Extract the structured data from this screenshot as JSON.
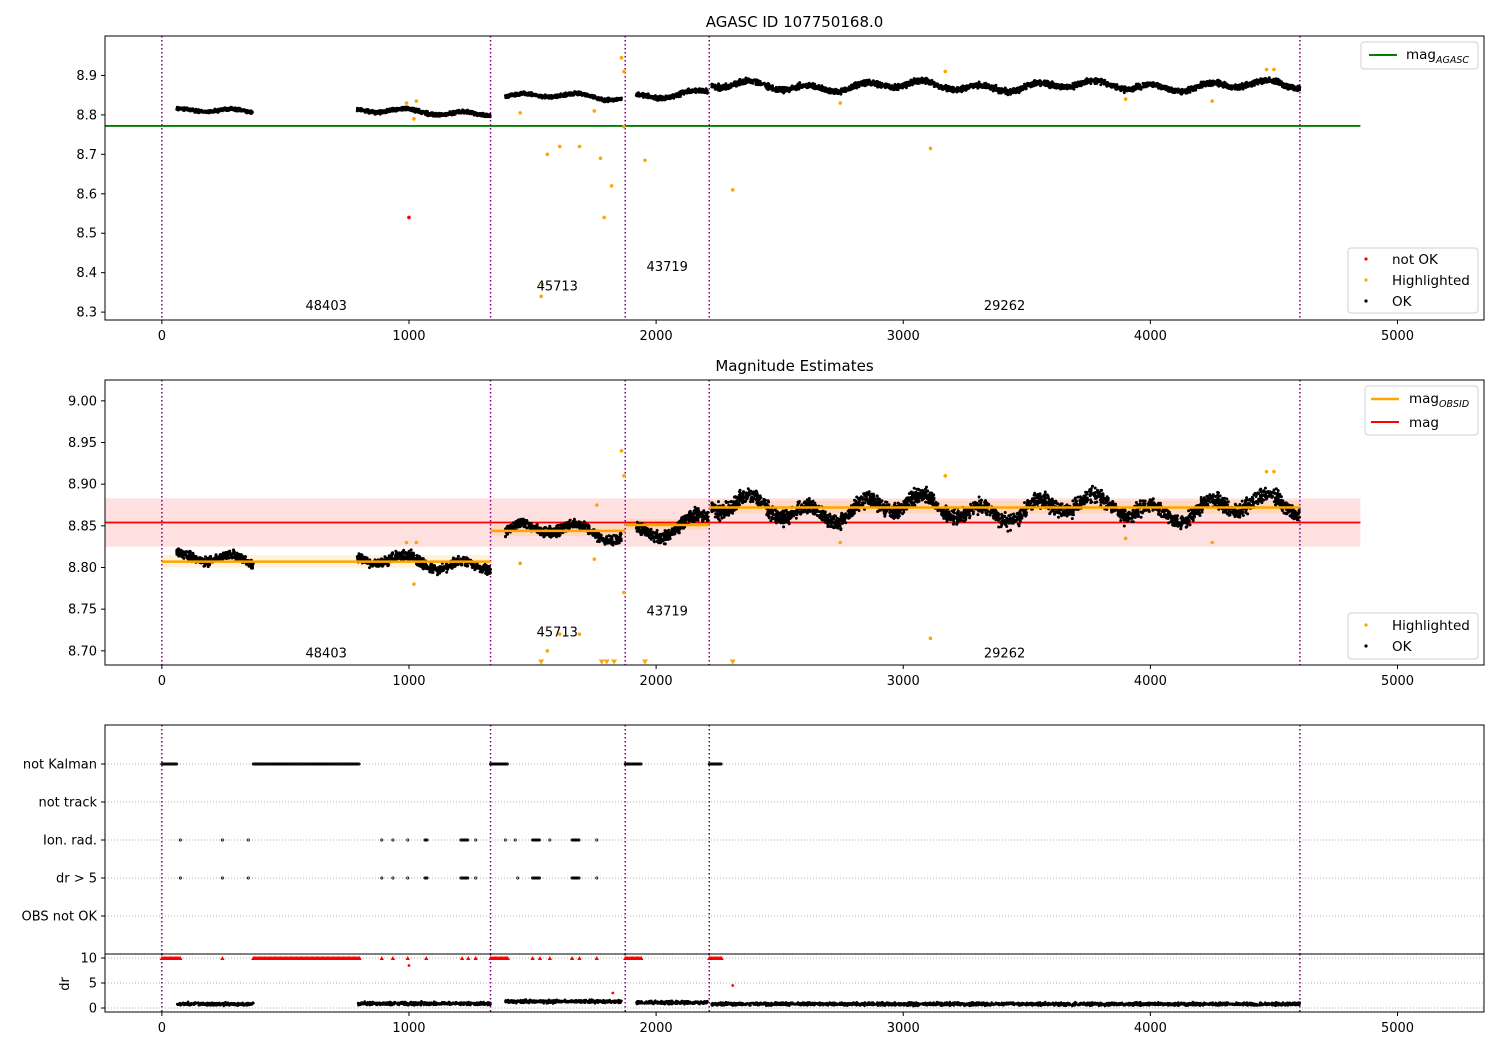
{
  "chart_data": [
    {
      "type": "scatter",
      "title": "AGASC ID 107750168.0",
      "xlim": [
        -230,
        5350
      ],
      "ylim": [
        8.28,
        9.0
      ],
      "xticks": [
        0,
        1000,
        2000,
        3000,
        4000,
        5000
      ],
      "yticks": [
        8.3,
        8.4,
        8.5,
        8.6,
        8.7,
        8.8,
        8.9
      ],
      "obsid_boundaries": [
        0,
        1330,
        1875,
        2215,
        4605
      ],
      "obsid_labels": [
        {
          "text": "48403",
          "x": 665,
          "y": 8.315
        },
        {
          "text": "45713",
          "x": 1600,
          "y": 8.365
        },
        {
          "text": "43719",
          "x": 2045,
          "y": 8.415
        },
        {
          "text": "29262",
          "x": 3410,
          "y": 8.315
        }
      ],
      "reference_lines": [
        {
          "name": "mag",
          "subscript": "AGASC",
          "y": 8.772,
          "x": [
            -230,
            4850
          ],
          "color": "#008000"
        }
      ],
      "series": [
        {
          "name": "not OK",
          "color": "#ff0000",
          "marker": "dot",
          "points": [
            [
              1000,
              8.54
            ]
          ]
        },
        {
          "name": "Highlighted",
          "color": "#ffa500",
          "marker": "dot",
          "points": [
            [
              990,
              8.83
            ],
            [
              1020,
              8.79
            ],
            [
              1030,
              8.835
            ],
            [
              1450,
              8.805
            ],
            [
              1560,
              8.7
            ],
            [
              1610,
              8.72
            ],
            [
              1690,
              8.72
            ],
            [
              1750,
              8.81
            ],
            [
              1775,
              8.69
            ],
            [
              1790,
              8.54
            ],
            [
              1820,
              8.62
            ],
            [
              1860,
              8.945
            ],
            [
              1870,
              8.91
            ],
            [
              1870,
              8.77
            ],
            [
              1955,
              8.685
            ],
            [
              2310,
              8.61
            ],
            [
              2745,
              8.83
            ],
            [
              3110,
              8.715
            ],
            [
              3170,
              8.91
            ],
            [
              3900,
              8.84
            ],
            [
              4250,
              8.835
            ],
            [
              4470,
              8.915
            ],
            [
              4500,
              8.915
            ],
            [
              1535,
              8.34
            ],
            [
              1540,
              8.37
            ]
          ]
        },
        {
          "name": "OK",
          "color": "#000000",
          "marker": "dot",
          "segments": [
            {
              "x": [
                60,
                370
              ],
              "base": [
                8.81,
                8.808
              ],
              "amp": 0.01
            },
            {
              "x": [
                790,
                1330
              ],
              "base": [
                8.808,
                8.806
              ],
              "amp": 0.012
            },
            {
              "x": [
                1390,
                1860
              ],
              "base": [
                8.848,
                8.844
              ],
              "amp": 0.012
            },
            {
              "x": [
                1920,
                2210
              ],
              "base": [
                8.85,
                8.856
              ],
              "amp": 0.014
            },
            {
              "x": [
                2225,
                4605
              ],
              "base": [
                8.872,
                8.874
              ],
              "amp": 0.018
            }
          ]
        }
      ],
      "legends": [
        {
          "entries": [
            "mag_AGASC"
          ],
          "placement": "top-right"
        },
        {
          "entries": [
            "not OK",
            "Highlighted",
            "OK"
          ],
          "placement": "bottom-right"
        }
      ]
    },
    {
      "type": "scatter",
      "title": "Magnitude Estimates",
      "xlim": [
        -230,
        5350
      ],
      "ylim": [
        8.683,
        9.025
      ],
      "xticks": [
        0,
        1000,
        2000,
        3000,
        4000,
        5000
      ],
      "yticks": [
        8.7,
        8.75,
        8.8,
        8.85,
        8.9,
        8.95,
        9.0
      ],
      "obsid_boundaries": [
        0,
        1330,
        1875,
        2215,
        4605
      ],
      "obsid_labels": [
        {
          "text": "48403",
          "x": 665,
          "y": 8.697
        },
        {
          "text": "45713",
          "x": 1600,
          "y": 8.722
        },
        {
          "text": "43719",
          "x": 2045,
          "y": 8.747
        },
        {
          "text": "29262",
          "x": 3410,
          "y": 8.697
        }
      ],
      "mag_line": {
        "name": "mag",
        "y": 8.854,
        "band": [
          8.825,
          8.883
        ],
        "x": [
          -230,
          4850
        ],
        "color": "#ff0000"
      },
      "obsid_mag": {
        "name": "mag",
        "subscript": "OBSID",
        "color": "#ffa500",
        "segments": [
          {
            "x": [
              0,
              1330
            ],
            "y": 8.807,
            "band": [
              8.8,
              8.815
            ]
          },
          {
            "x": [
              1330,
              1875
            ],
            "y": 8.844,
            "band": [
              8.838,
              8.851
            ]
          },
          {
            "x": [
              1875,
              2215
            ],
            "y": 8.851,
            "band": [
              8.845,
              8.858
            ]
          },
          {
            "x": [
              2215,
              4605
            ],
            "y": 8.872,
            "band": [
              8.865,
              8.88
            ]
          }
        ]
      },
      "series": [
        {
          "name": "Highlighted",
          "color": "#ffa500",
          "marker": "dot",
          "points": [
            [
              990,
              8.83
            ],
            [
              1020,
              8.78
            ],
            [
              1030,
              8.83
            ],
            [
              1450,
              8.805
            ],
            [
              1560,
              8.7
            ],
            [
              1610,
              8.72
            ],
            [
              1690,
              8.72
            ],
            [
              1750,
              8.81
            ],
            [
              1760,
              8.875
            ],
            [
              1860,
              8.94
            ],
            [
              1870,
              8.91
            ],
            [
              1870,
              8.77
            ],
            [
              2745,
              8.83
            ],
            [
              3110,
              8.715
            ],
            [
              3170,
              8.91
            ],
            [
              3900,
              8.835
            ],
            [
              4250,
              8.83
            ],
            [
              4470,
              8.915
            ],
            [
              4500,
              8.915
            ]
          ]
        },
        {
          "name": "Highlighted (below range)",
          "color": "#ffa500",
          "marker": "triangle-down",
          "points": [
            [
              1535,
              8.686
            ],
            [
              1780,
              8.686
            ],
            [
              1800,
              8.686
            ],
            [
              1830,
              8.686
            ],
            [
              1955,
              8.686
            ],
            [
              2310,
              8.686
            ]
          ]
        },
        {
          "name": "OK",
          "color": "#000000",
          "marker": "dot",
          "segments": [
            {
              "x": [
                60,
                370
              ],
              "base": [
                8.81,
                8.806
              ],
              "amp": 0.012
            },
            {
              "x": [
                790,
                1330
              ],
              "base": [
                8.806,
                8.806
              ],
              "amp": 0.014
            },
            {
              "x": [
                1390,
                1860
              ],
              "base": [
                8.845,
                8.84
              ],
              "amp": 0.015
            },
            {
              "x": [
                1920,
                2210
              ],
              "base": [
                8.845,
                8.856
              ],
              "amp": 0.018
            },
            {
              "x": [
                2225,
                4605
              ],
              "base": [
                8.87,
                8.872
              ],
              "amp": 0.022
            }
          ]
        }
      ],
      "legends": [
        {
          "entries": [
            "mag_OBSID",
            "mag"
          ],
          "placement": "top-right"
        },
        {
          "entries": [
            "Highlighted",
            "OK"
          ],
          "placement": "bottom-right"
        }
      ]
    },
    {
      "type": "scatter",
      "title": "",
      "xlim": [
        -230,
        5350
      ],
      "flag_rows": [
        "not Kalman",
        "not track",
        "Ion. rad.",
        "dr > 5",
        "OBS not OK"
      ],
      "obsid_boundaries": [
        0,
        1330,
        1875,
        2215,
        4605
      ],
      "flags": {
        "not Kalman": [
          [
            0,
            60
          ],
          [
            370,
            800
          ],
          [
            1330,
            1400
          ],
          [
            1875,
            1940
          ],
          [
            2215,
            2265
          ]
        ],
        "not track": [],
        "Ion. rad.": [
          [
            75,
            75
          ],
          [
            245,
            245
          ],
          [
            350,
            350
          ],
          [
            890,
            890
          ],
          [
            935,
            935
          ],
          [
            995,
            995
          ],
          [
            1065,
            1075
          ],
          [
            1210,
            1240
          ],
          [
            1270,
            1270
          ],
          [
            1390,
            1390
          ],
          [
            1430,
            1430
          ],
          [
            1500,
            1530
          ],
          [
            1570,
            1570
          ],
          [
            1660,
            1690
          ],
          [
            1760,
            1760
          ]
        ],
        "dr > 5": [
          [
            75,
            75
          ],
          [
            245,
            245
          ],
          [
            350,
            350
          ],
          [
            890,
            890
          ],
          [
            935,
            935
          ],
          [
            995,
            995
          ],
          [
            1065,
            1075
          ],
          [
            1210,
            1240
          ],
          [
            1270,
            1270
          ],
          [
            1440,
            1440
          ],
          [
            1500,
            1530
          ],
          [
            1660,
            1690
          ],
          [
            1760,
            1760
          ]
        ],
        "OBS not OK": []
      },
      "dr_panel": {
        "ylabel": "dr",
        "yticks": [
          0,
          5,
          10
        ],
        "ylim": [
          -0.8,
          10.8
        ],
        "clip_value": 10,
        "clipped_ranges": [
          [
            0,
            70
          ],
          [
            370,
            800
          ],
          [
            1330,
            1400
          ],
          [
            1875,
            1940
          ],
          [
            2215,
            2265
          ]
        ],
        "clipped_singles": [
          75,
          245,
          890,
          935,
          995,
          1070,
          1215,
          1240,
          1270,
          1500,
          1530,
          1570,
          1660,
          1690,
          1760
        ],
        "red_points": [
          [
            1000,
            8.5
          ],
          [
            2310,
            4.5
          ],
          [
            1825,
            3.0
          ]
        ],
        "ok_segments": [
          {
            "x": [
              60,
              370
            ],
            "base": 0.8
          },
          {
            "x": [
              790,
              1330
            ],
            "base": 0.9
          },
          {
            "x": [
              1390,
              1860
            ],
            "base": 1.3
          },
          {
            "x": [
              1920,
              2210
            ],
            "base": 1.1
          },
          {
            "x": [
              2225,
              4605
            ],
            "base": 0.8
          }
        ]
      }
    }
  ]
}
